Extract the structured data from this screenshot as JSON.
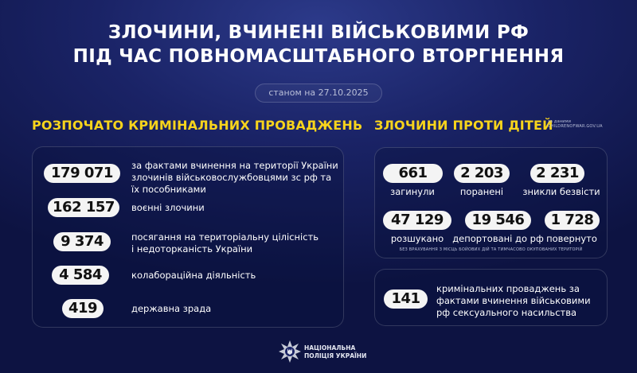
{
  "title": {
    "line1": "ЗЛОЧИНИ, ВЧИНЕНІ ВІЙСЬКОВИМИ РФ",
    "line2": "ПІД ЧАС ПОВНОМАСШТАБНОГО ВТОРГНЕННЯ"
  },
  "date": "станом на 27.10.2025",
  "proceedings": {
    "heading": "РОЗПОЧАТО КРИМІНАЛЬНИХ ПРОВАДЖЕНЬ",
    "items": [
      {
        "value": "179  071",
        "label": "за фактами вчинення на території України злочинів військовослужбовцями зс рф та їх пособниками"
      },
      {
        "value": "162 157",
        "label": "воєнні злочини"
      },
      {
        "value": "9 374",
        "label": "посягання на територіальну цілісність і недоторканість України"
      },
      {
        "value": "4 584",
        "label": "колабораційна діяльність"
      },
      {
        "value": "419",
        "label": "державна зрада"
      }
    ]
  },
  "children": {
    "heading": "ЗЛОЧИНИ ПРОТИ ДІТЕЙ",
    "source_line1": "за даними",
    "source_line2": "CHILDRENOFWAR.GOV.UA",
    "stats": [
      {
        "value": "661",
        "label": "загинули"
      },
      {
        "value": "2 203",
        "label": "поранені"
      },
      {
        "value": "2 231",
        "label": "зникли безвісти"
      },
      {
        "value": "47 129",
        "label": "розшукано"
      },
      {
        "value": "19 546",
        "label": "депортовані до рф"
      },
      {
        "value": "1 728",
        "label": "повернуто"
      }
    ],
    "footnote": "БЕЗ ВРАХУВАННЯ З МІСЦЬ БОЙОВИХ ДІЙ ТА ТИМЧАСОВО ОКУПОВАНИХ ТЕРИТОРІЙ",
    "sexual": {
      "value": "141",
      "label": "кримінальних проваджень за фактами вчинення військовими рф сексуального насильства"
    }
  },
  "footer": {
    "line1": "НАЦІОНАЛЬНА",
    "line2": "ПОЛІЦІЯ УКРАЇНИ",
    "logo_icon": "police-star-emblem"
  },
  "colors": {
    "accent": "#f7d41c",
    "background": "#0d1342"
  }
}
